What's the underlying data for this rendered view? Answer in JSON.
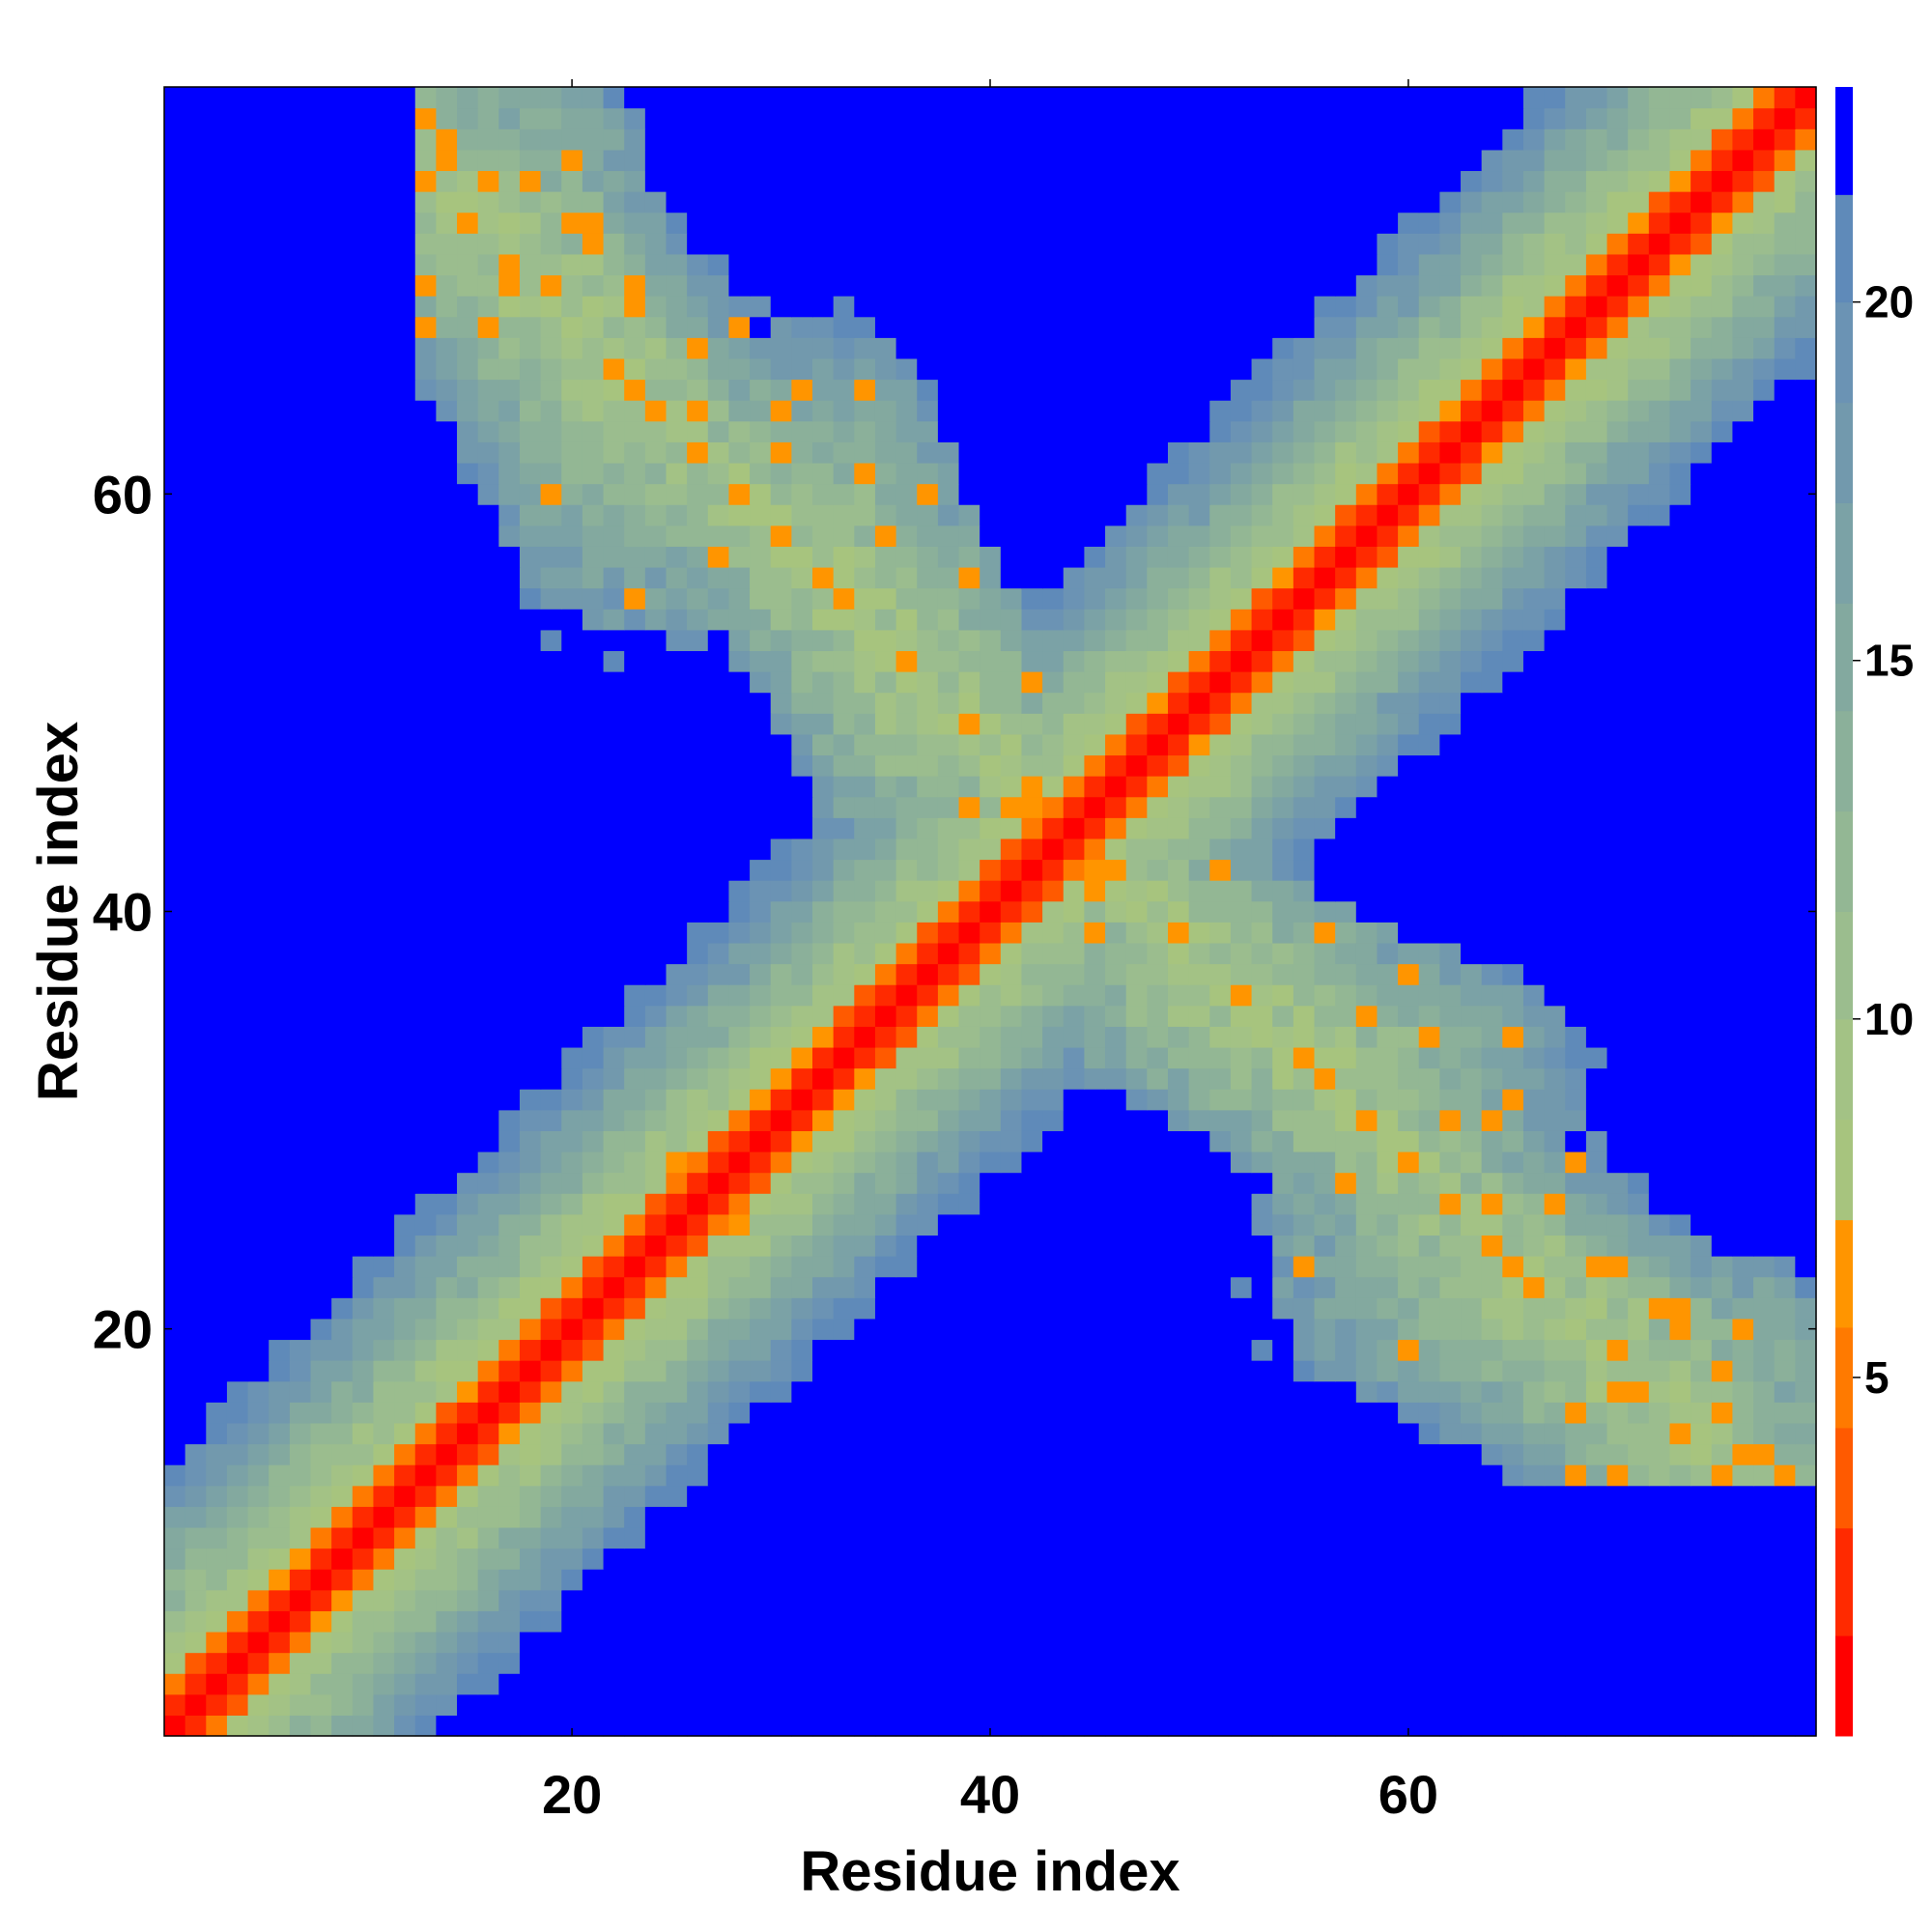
{
  "chart_data": {
    "type": "heatmap",
    "title": "",
    "xlabel": "Residue index",
    "ylabel": "Residue index",
    "n_residues": 79,
    "xlim": [
      1,
      79
    ],
    "ylim": [
      1,
      79
    ],
    "x_ticks": [
      20,
      40,
      60
    ],
    "y_ticks": [
      20,
      40,
      60
    ],
    "x_tick_labels": [
      "20",
      "40",
      "60"
    ],
    "y_tick_labels": [
      "20",
      "40",
      "60"
    ],
    "colorbar": {
      "ticks": [
        5,
        10,
        15,
        20
      ],
      "tick_labels": [
        "5",
        "10",
        "15",
        "20"
      ],
      "range": [
        0,
        23
      ],
      "bands": [
        {
          "from": 0,
          "to": 1.4,
          "color": "#ff0000"
        },
        {
          "from": 1.4,
          "to": 2.9,
          "color": "#ff2a00"
        },
        {
          "from": 2.9,
          "to": 4.3,
          "color": "#ff5a00"
        },
        {
          "from": 4.3,
          "to": 5.7,
          "color": "#ff7a00"
        },
        {
          "from": 5.7,
          "to": 7.2,
          "color": "#ff9500"
        },
        {
          "from": 7.2,
          "to": 8.6,
          "color": "#a7c47e"
        },
        {
          "from": 8.6,
          "to": 10.0,
          "color": "#a3c285"
        },
        {
          "from": 10.0,
          "to": 11.5,
          "color": "#9bbd8e"
        },
        {
          "from": 11.5,
          "to": 12.9,
          "color": "#93b794"
        },
        {
          "from": 12.9,
          "to": 14.3,
          "color": "#8bb09a"
        },
        {
          "from": 14.3,
          "to": 15.8,
          "color": "#83a99f"
        },
        {
          "from": 15.8,
          "to": 17.2,
          "color": "#7ba2a6"
        },
        {
          "from": 17.2,
          "to": 18.6,
          "color": "#7299ad"
        },
        {
          "from": 18.6,
          "to": 20.0,
          "color": "#6b93b4"
        },
        {
          "from": 20.0,
          "to": 21.5,
          "color": "#5f8ab9"
        },
        {
          "from": 21.5,
          "to": 23.0,
          "color": "#0000ff"
        }
      ]
    },
    "background_color": "#0000ff",
    "structure": {
      "description": "symmetric distance map: main diagonal band plus anti-diagonal lobes",
      "main_diagonal_halfwidth": 12,
      "anti_diagonal_arms": [
        {
          "x_range": [
            13,
            47
          ],
          "y_range": [
            47,
            79
          ]
        },
        {
          "x_range": [
            47,
            79
          ],
          "y_range": [
            13,
            47
          ]
        }
      ],
      "crossing_residue": 44
    }
  }
}
